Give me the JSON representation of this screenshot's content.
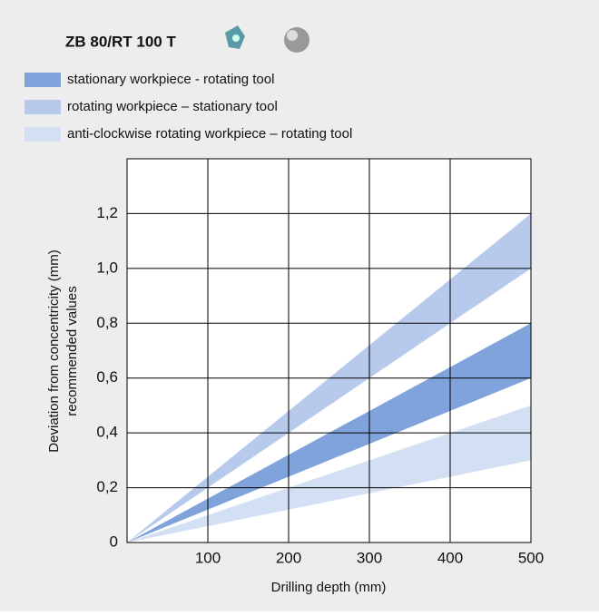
{
  "chart_data": {
    "type": "band",
    "title": "ZB 80/RT 100 T",
    "x_label": "Drilling depth (mm)",
    "y_label": [
      "Deviation from concentricity (mm)",
      "recommended values"
    ],
    "xlim": [
      0,
      500
    ],
    "ylim": [
      0,
      1.4
    ],
    "xticks": [
      100,
      200,
      300,
      400,
      500
    ],
    "yticks": [
      0,
      {
        "value": 0.2,
        "label": "0,2"
      },
      {
        "value": 0.4,
        "label": "0,4"
      },
      {
        "value": 0.6,
        "label": "0,6"
      },
      {
        "value": 0.8,
        "label": "0,8"
      },
      {
        "value": 1.0,
        "label": "1,0"
      },
      {
        "value": 1.2,
        "label": "1,2"
      }
    ],
    "grid": true,
    "series": [
      {
        "name": "stationary workpiece - rotating tool",
        "color": "#7fa3da",
        "x": [
          0,
          500
        ],
        "lower": [
          0,
          0.6
        ],
        "upper": [
          0,
          0.8
        ]
      },
      {
        "name": "rotating workpiece – stationary tool",
        "color": "#b7caec",
        "x": [
          0,
          500
        ],
        "lower": [
          0,
          1.0
        ],
        "upper": [
          0,
          1.2
        ]
      },
      {
        "name": "anti-clockwise rotating workpiece – rotating tool",
        "color": "#d3dff3",
        "x": [
          0,
          500
        ],
        "lower": [
          0,
          0.3
        ],
        "upper": [
          0,
          0.5
        ]
      }
    ]
  }
}
